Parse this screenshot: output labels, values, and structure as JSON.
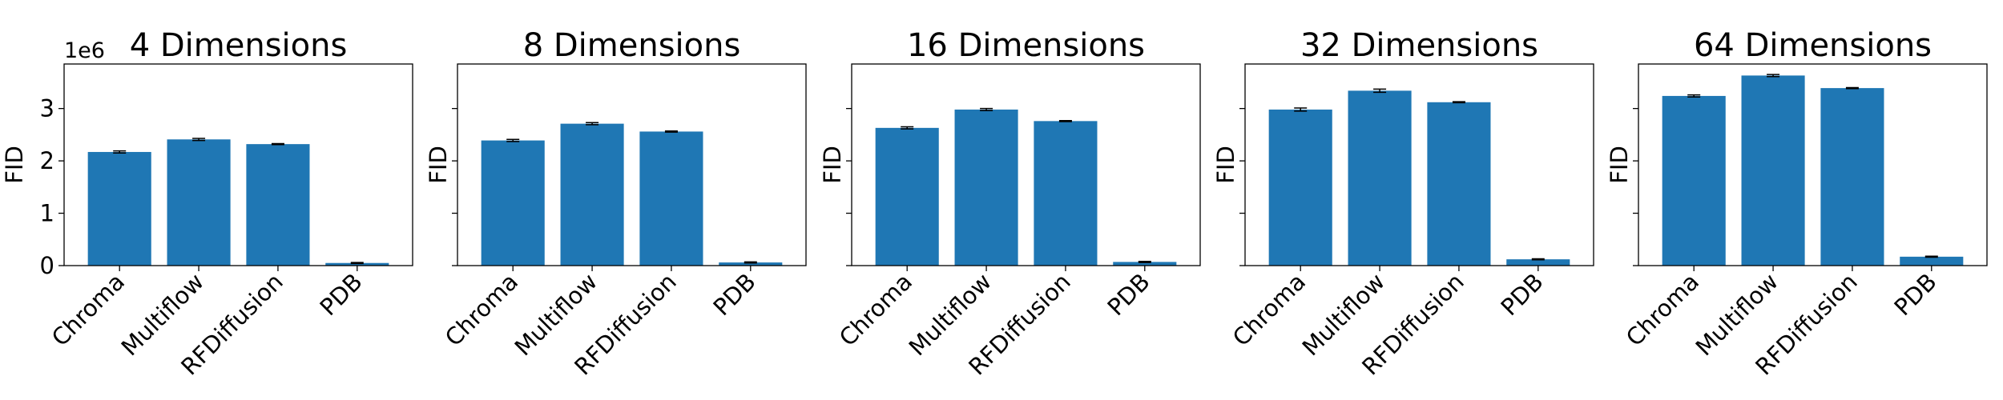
{
  "chart_data": [
    {
      "type": "bar",
      "title": "4 Dimensions",
      "ylabel": "FID",
      "offset_label": "1e6",
      "categories": [
        "Chroma",
        "Multiflow",
        "RFDiffusion",
        "PDB"
      ],
      "values": [
        2.17,
        2.41,
        2.32,
        0.05
      ],
      "errors": [
        0.02,
        0.02,
        0.01,
        0.01
      ],
      "color": "#1f77b4",
      "ylim": [
        0,
        3.85
      ],
      "yticks": [
        0,
        1,
        2,
        3
      ]
    },
    {
      "type": "bar",
      "title": "8 Dimensions",
      "ylabel": "FID",
      "categories": [
        "Chroma",
        "Multiflow",
        "RFDiffusion",
        "PDB"
      ],
      "values": [
        2.39,
        2.71,
        2.56,
        0.06
      ],
      "errors": [
        0.02,
        0.02,
        0.01,
        0.01
      ],
      "color": "#1f77b4",
      "ylim": [
        0,
        3.85
      ],
      "yticks": [
        0,
        1,
        2,
        3
      ]
    },
    {
      "type": "bar",
      "title": "16 Dimensions",
      "ylabel": "FID",
      "categories": [
        "Chroma",
        "Multiflow",
        "RFDiffusion",
        "PDB"
      ],
      "values": [
        2.63,
        2.98,
        2.76,
        0.07
      ],
      "errors": [
        0.02,
        0.02,
        0.01,
        0.01
      ],
      "color": "#1f77b4",
      "ylim": [
        0,
        3.85
      ],
      "yticks": [
        0,
        1,
        2,
        3
      ]
    },
    {
      "type": "bar",
      "title": "32 Dimensions",
      "ylabel": "FID",
      "categories": [
        "Chroma",
        "Multiflow",
        "RFDiffusion",
        "PDB"
      ],
      "values": [
        2.98,
        3.34,
        3.12,
        0.12
      ],
      "errors": [
        0.03,
        0.03,
        0.01,
        0.01
      ],
      "color": "#1f77b4",
      "ylim": [
        0,
        3.85
      ],
      "yticks": [
        0,
        1,
        2,
        3
      ]
    },
    {
      "type": "bar",
      "title": "64 Dimensions",
      "ylabel": "FID",
      "categories": [
        "Chroma",
        "Multiflow",
        "RFDiffusion",
        "PDB"
      ],
      "values": [
        3.24,
        3.63,
        3.39,
        0.17
      ],
      "errors": [
        0.02,
        0.02,
        0.01,
        0.01
      ],
      "color": "#1f77b4",
      "ylim": [
        0,
        3.85
      ],
      "yticks": [
        0,
        1,
        2,
        3
      ]
    }
  ]
}
